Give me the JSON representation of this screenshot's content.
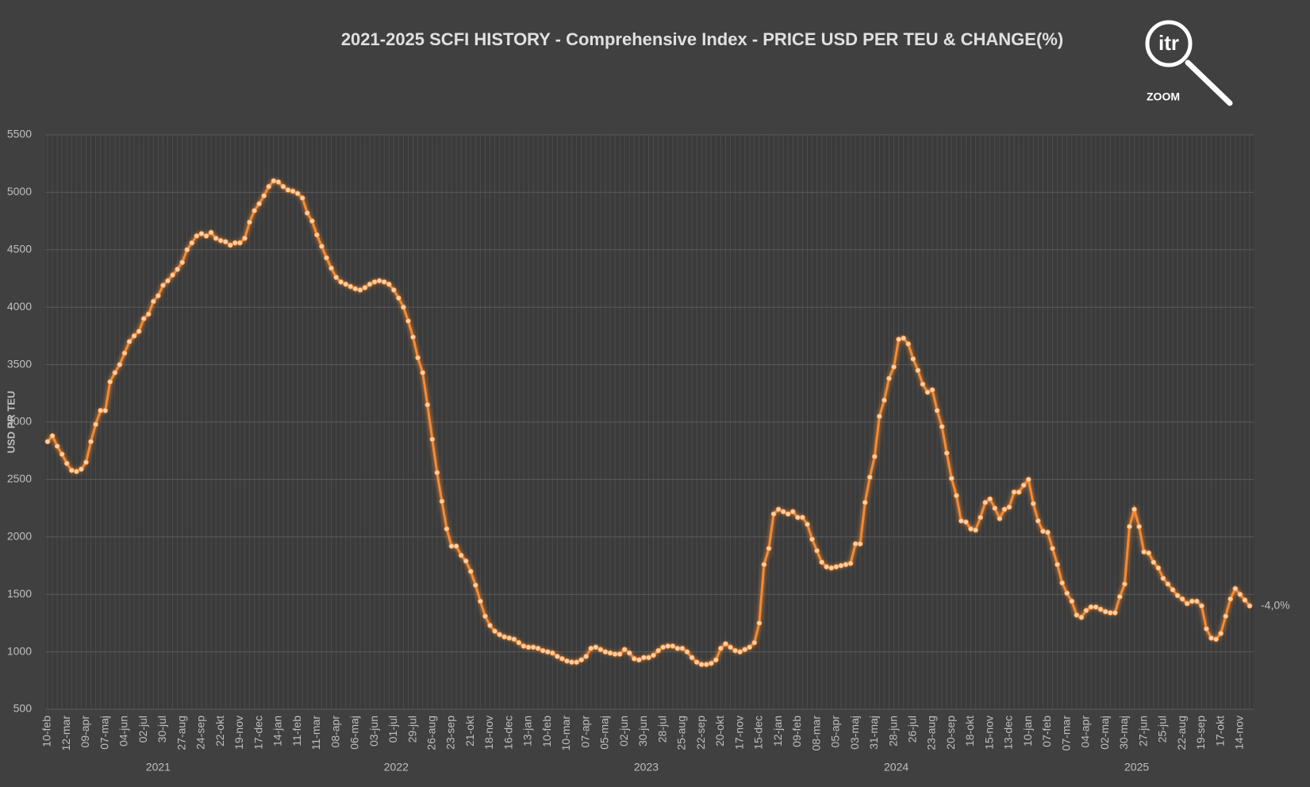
{
  "chart_data": {
    "type": "line",
    "title": "2021-2025 SCFI HISTORY - Comprehensive Index - PRICE USD PER TEU & CHANGE(%)",
    "y_label": "USD PR TEU",
    "end_label": "-4,0%",
    "logo_text": "itr",
    "logo_caption": "ZOOM",
    "color": "#f58a32",
    "marker_color": "#fbd2ae",
    "grid": true,
    "ylim": [
      500,
      5500
    ],
    "yticks": [
      500,
      1000,
      1500,
      2000,
      2500,
      3000,
      3500,
      4000,
      4500,
      5000,
      5500
    ],
    "x_groups": [
      {
        "label": "2021",
        "count": 47
      },
      {
        "label": "2022",
        "count": 52
      },
      {
        "label": "2023",
        "count": 52
      },
      {
        "label": "2024",
        "count": 52
      },
      {
        "label": "2025",
        "count": 48
      }
    ],
    "categories": [
      "10-feb",
      null,
      null,
      null,
      "12-mar",
      null,
      null,
      null,
      "09-apr",
      null,
      null,
      null,
      "07-maj",
      null,
      null,
      null,
      "04-jun",
      null,
      null,
      null,
      "02-jul",
      null,
      null,
      null,
      "30-jul",
      null,
      null,
      null,
      "27-aug",
      null,
      null,
      null,
      "24-sep",
      null,
      null,
      null,
      "22-okt",
      null,
      null,
      null,
      "19-nov",
      null,
      null,
      null,
      "17-dec",
      null,
      null,
      null,
      "14-jan",
      null,
      null,
      null,
      "11-feb",
      null,
      null,
      null,
      "11-mar",
      null,
      null,
      null,
      "08-apr",
      null,
      null,
      null,
      "06-maj",
      null,
      null,
      null,
      "03-jun",
      null,
      null,
      null,
      "01-jul",
      null,
      null,
      null,
      "29-jul",
      null,
      null,
      null,
      "26-aug",
      null,
      null,
      null,
      "23-sep",
      null,
      null,
      null,
      "21-okt",
      null,
      null,
      null,
      "18-nov",
      null,
      null,
      null,
      "16-dec",
      null,
      null,
      null,
      "13-jan",
      null,
      null,
      null,
      "10-feb",
      null,
      null,
      null,
      "10-mar",
      null,
      null,
      null,
      "07-apr",
      null,
      null,
      null,
      "05-maj",
      null,
      null,
      null,
      "02-jun",
      null,
      null,
      null,
      "30-jun",
      null,
      null,
      null,
      "28-jul",
      null,
      null,
      null,
      "25-aug",
      null,
      null,
      null,
      "22-sep",
      null,
      null,
      null,
      "20-okt",
      null,
      null,
      null,
      "17-nov",
      null,
      null,
      null,
      "15-dec",
      null,
      null,
      null,
      "12-jan",
      null,
      null,
      null,
      "09-feb",
      null,
      null,
      null,
      "08-mar",
      null,
      null,
      null,
      "05-apr",
      null,
      null,
      null,
      "03-maj",
      null,
      null,
      null,
      "31-maj",
      null,
      null,
      null,
      "28-jun",
      null,
      null,
      null,
      "26-jul",
      null,
      null,
      null,
      "23-aug",
      null,
      null,
      null,
      "20-sep",
      null,
      null,
      null,
      "18-okt",
      null,
      null,
      null,
      "15-nov",
      null,
      null,
      null,
      "13-dec",
      null,
      null,
      null,
      "10-jan",
      null,
      null,
      null,
      "07-feb",
      null,
      null,
      null,
      "07-mar",
      null,
      null,
      null,
      "04-apr",
      null,
      null,
      null,
      "02-maj",
      null,
      null,
      null,
      "30-maj",
      null,
      null,
      null,
      "27-jun",
      null,
      null,
      null,
      "25-jul",
      null,
      null,
      null,
      "22-aug",
      null,
      null,
      null,
      "19-sep",
      null,
      null,
      null,
      "17-okt",
      null,
      null,
      null,
      "14-nov",
      null,
      null
    ],
    "values": [
      2830,
      2880,
      2790,
      2720,
      2640,
      2580,
      2570,
      2590,
      2650,
      2830,
      2980,
      3100,
      3100,
      3350,
      3430,
      3500,
      3600,
      3700,
      3750,
      3790,
      3900,
      3940,
      4050,
      4100,
      4190,
      4230,
      4280,
      4330,
      4390,
      4500,
      4560,
      4620,
      4640,
      4620,
      4650,
      4600,
      4580,
      4570,
      4540,
      4560,
      4560,
      4600,
      4740,
      4840,
      4900,
      4970,
      5050,
      5100,
      5090,
      5050,
      5020,
      5010,
      4990,
      4950,
      4820,
      4750,
      4630,
      4530,
      4430,
      4340,
      4260,
      4220,
      4200,
      4180,
      4160,
      4150,
      4170,
      4200,
      4220,
      4230,
      4220,
      4200,
      4150,
      4080,
      4000,
      3880,
      3740,
      3560,
      3430,
      3150,
      2850,
      2560,
      2310,
      2070,
      1920,
      1920,
      1840,
      1790,
      1700,
      1580,
      1440,
      1310,
      1230,
      1180,
      1150,
      1130,
      1120,
      1110,
      1080,
      1050,
      1040,
      1040,
      1030,
      1010,
      1000,
      990,
      960,
      940,
      920,
      910,
      910,
      930,
      960,
      1030,
      1040,
      1020,
      1000,
      990,
      980,
      980,
      1020,
      990,
      940,
      930,
      950,
      950,
      970,
      1010,
      1040,
      1050,
      1050,
      1030,
      1030,
      1000,
      950,
      910,
      890,
      890,
      900,
      930,
      1030,
      1070,
      1040,
      1010,
      1000,
      1020,
      1040,
      1080,
      1250,
      1760,
      1900,
      2200,
      2240,
      2220,
      2200,
      2220,
      2170,
      2170,
      2110,
      1980,
      1880,
      1780,
      1740,
      1730,
      1740,
      1750,
      1760,
      1770,
      1940,
      1940,
      2300,
      2520,
      2700,
      3050,
      3190,
      3380,
      3480,
      3720,
      3730,
      3680,
      3550,
      3450,
      3330,
      3260,
      3280,
      3100,
      2960,
      2730,
      2510,
      2360,
      2140,
      2130,
      2070,
      2060,
      2170,
      2300,
      2330,
      2250,
      2160,
      2240,
      2260,
      2390,
      2390,
      2450,
      2500,
      2290,
      2140,
      2050,
      2040,
      1900,
      1760,
      1600,
      1510,
      1440,
      1320,
      1300,
      1360,
      1390,
      1390,
      1370,
      1350,
      1340,
      1340,
      1480,
      1590,
      2090,
      2240,
      2090,
      1870,
      1860,
      1780,
      1730,
      1640,
      1590,
      1540,
      1490,
      1460,
      1420,
      1440,
      1440,
      1400,
      1200,
      1120,
      1110,
      1160,
      1310,
      1460,
      1550,
      1500,
      1450,
      1400
    ]
  }
}
